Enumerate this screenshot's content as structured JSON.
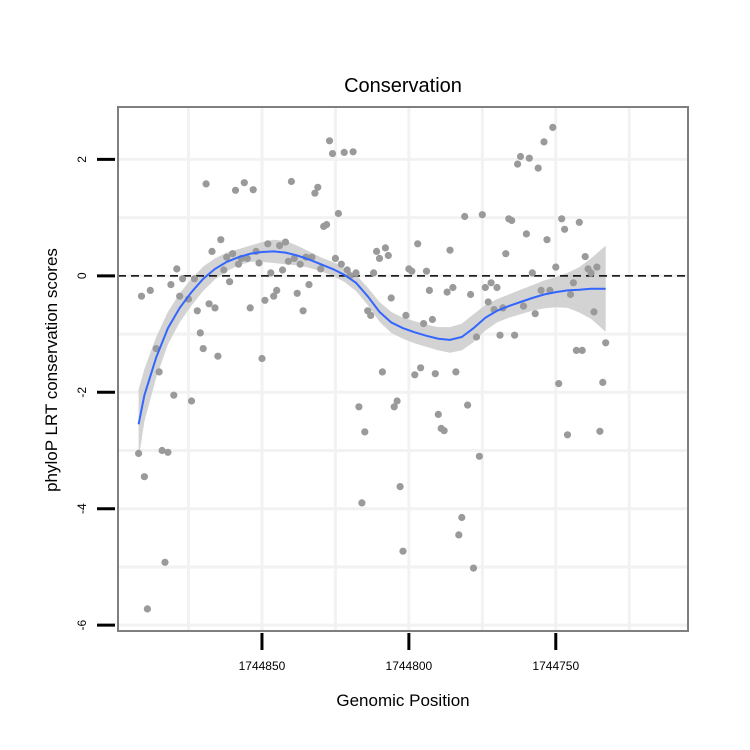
{
  "chart_data": {
    "type": "scatter",
    "title": "Conservation",
    "xlabel": "Genomic Position",
    "ylabel": "phyloP LRT conservation scores",
    "x_reversed": true,
    "xlim": [
      1744899,
      1744705
    ],
    "ylim": [
      -6.1,
      2.9
    ],
    "x_ticks": [
      1744850,
      1744800,
      1744750
    ],
    "y_ticks": [
      2,
      0,
      -2,
      -4,
      -6
    ],
    "grid": true,
    "reference_line": {
      "y": 0,
      "style": "dashed"
    },
    "points": [
      [
        1744892,
        -3.05
      ],
      [
        1744891,
        -0.35
      ],
      [
        1744890,
        -3.45
      ],
      [
        1744889,
        -5.72
      ],
      [
        1744888,
        -0.25
      ],
      [
        1744886,
        -1.25
      ],
      [
        1744885,
        -1.65
      ],
      [
        1744884,
        -3.0
      ],
      [
        1744883,
        -4.92
      ],
      [
        1744882,
        -3.03
      ],
      [
        1744881,
        -0.15
      ],
      [
        1744880,
        -2.05
      ],
      [
        1744879,
        0.12
      ],
      [
        1744878,
        -0.35
      ],
      [
        1744877,
        -0.05
      ],
      [
        1744875,
        -0.4
      ],
      [
        1744874,
        -2.15
      ],
      [
        1744873,
        -0.05
      ],
      [
        1744872,
        -0.6
      ],
      [
        1744871,
        -0.98
      ],
      [
        1744870,
        -1.25
      ],
      [
        1744869,
        1.58
      ],
      [
        1744868,
        -0.48
      ],
      [
        1744867,
        0.42
      ],
      [
        1744866,
        -0.55
      ],
      [
        1744865,
        -1.38
      ],
      [
        1744864,
        0.62
      ],
      [
        1744863,
        0.1
      ],
      [
        1744862,
        0.32
      ],
      [
        1744861,
        -0.1
      ],
      [
        1744860,
        0.38
      ],
      [
        1744859,
        1.47
      ],
      [
        1744858,
        0.2
      ],
      [
        1744857,
        0.3
      ],
      [
        1744856,
        1.6
      ],
      [
        1744855,
        0.3
      ],
      [
        1744854,
        -0.55
      ],
      [
        1744853,
        1.48
      ],
      [
        1744852,
        0.42
      ],
      [
        1744851,
        0.22
      ],
      [
        1744850,
        -1.42
      ],
      [
        1744849,
        -0.42
      ],
      [
        1744848,
        0.55
      ],
      [
        1744847,
        0.05
      ],
      [
        1744846,
        -0.35
      ],
      [
        1744845,
        -0.25
      ],
      [
        1744844,
        0.52
      ],
      [
        1744843,
        0.1
      ],
      [
        1744842,
        0.58
      ],
      [
        1744841,
        0.25
      ],
      [
        1744840,
        1.62
      ],
      [
        1744839,
        0.3
      ],
      [
        1744838,
        -0.3
      ],
      [
        1744837,
        0.2
      ],
      [
        1744836,
        -0.6
      ],
      [
        1744835,
        0.32
      ],
      [
        1744834,
        -0.15
      ],
      [
        1744833,
        0.32
      ],
      [
        1744832,
        1.42
      ],
      [
        1744831,
        1.52
      ],
      [
        1744830,
        0.12
      ],
      [
        1744829,
        0.85
      ],
      [
        1744828,
        0.88
      ],
      [
        1744827,
        2.32
      ],
      [
        1744826,
        2.1
      ],
      [
        1744825,
        0.3
      ],
      [
        1744824,
        1.07
      ],
      [
        1744823,
        0.2
      ],
      [
        1744822,
        2.12
      ],
      [
        1744821,
        0.1
      ],
      [
        1744820,
        0.0
      ],
      [
        1744819,
        2.13
      ],
      [
        1744818,
        0.05
      ],
      [
        1744817,
        -2.25
      ],
      [
        1744816,
        -3.9
      ],
      [
        1744815,
        -2.68
      ],
      [
        1744814,
        -0.6
      ],
      [
        1744813,
        -0.68
      ],
      [
        1744812,
        0.05
      ],
      [
        1744811,
        0.42
      ],
      [
        1744810,
        0.3
      ],
      [
        1744809,
        -1.65
      ],
      [
        1744808,
        0.48
      ],
      [
        1744807,
        0.35
      ],
      [
        1744806,
        -0.38
      ],
      [
        1744805,
        -2.25
      ],
      [
        1744804,
        -2.15
      ],
      [
        1744803,
        -3.62
      ],
      [
        1744802,
        -4.73
      ],
      [
        1744801,
        -0.68
      ],
      [
        1744800,
        0.12
      ],
      [
        1744799,
        0.08
      ],
      [
        1744798,
        -1.7
      ],
      [
        1744797,
        0.55
      ],
      [
        1744796,
        -1.58
      ],
      [
        1744795,
        -0.82
      ],
      [
        1744794,
        0.08
      ],
      [
        1744793,
        -0.25
      ],
      [
        1744792,
        -0.75
      ],
      [
        1744791,
        -1.68
      ],
      [
        1744790,
        -2.38
      ],
      [
        1744789,
        -2.62
      ],
      [
        1744788,
        -2.66
      ],
      [
        1744787,
        -0.28
      ],
      [
        1744786,
        0.44
      ],
      [
        1744785,
        -0.2
      ],
      [
        1744784,
        -1.65
      ],
      [
        1744783,
        -4.45
      ],
      [
        1744782,
        -4.15
      ],
      [
        1744781,
        1.02
      ],
      [
        1744780,
        -2.22
      ],
      [
        1744779,
        -0.32
      ],
      [
        1744778,
        -5.02
      ],
      [
        1744777,
        -1.05
      ],
      [
        1744776,
        -3.1
      ],
      [
        1744775,
        1.05
      ],
      [
        1744774,
        -0.2
      ],
      [
        1744773,
        -0.45
      ],
      [
        1744772,
        -0.12
      ],
      [
        1744771,
        -0.58
      ],
      [
        1744770,
        -0.2
      ],
      [
        1744769,
        -1.02
      ],
      [
        1744768,
        -0.55
      ],
      [
        1744767,
        0.38
      ],
      [
        1744766,
        0.98
      ],
      [
        1744765,
        0.95
      ],
      [
        1744764,
        -1.02
      ],
      [
        1744763,
        1.92
      ],
      [
        1744762,
        2.05
      ],
      [
        1744761,
        -0.52
      ],
      [
        1744760,
        0.72
      ],
      [
        1744759,
        2.02
      ],
      [
        1744758,
        0.05
      ],
      [
        1744757,
        -0.65
      ],
      [
        1744756,
        1.85
      ],
      [
        1744755,
        -0.25
      ],
      [
        1744754,
        2.3
      ],
      [
        1744753,
        0.62
      ],
      [
        1744752,
        -0.25
      ],
      [
        1744751,
        2.55
      ],
      [
        1744750,
        0.15
      ],
      [
        1744749,
        -1.85
      ],
      [
        1744748,
        0.98
      ],
      [
        1744747,
        0.8
      ],
      [
        1744746,
        -2.73
      ],
      [
        1744745,
        -0.32
      ],
      [
        1744744,
        -0.12
      ],
      [
        1744743,
        -1.28
      ],
      [
        1744742,
        0.92
      ],
      [
        1744741,
        -1.28
      ],
      [
        1744740,
        0.33
      ],
      [
        1744739,
        0.12
      ],
      [
        1744738,
        0.05
      ],
      [
        1744737,
        -0.62
      ],
      [
        1744736,
        0.15
      ],
      [
        1744735,
        -2.67
      ],
      [
        1744734,
        -1.83
      ],
      [
        1744733,
        -1.15
      ]
    ],
    "smooth_line": {
      "color": "#3366ff",
      "x": [
        1744892,
        1744890,
        1744886,
        1744882,
        1744878,
        1744874,
        1744870,
        1744866,
        1744862,
        1744858,
        1744854,
        1744850,
        1744846,
        1744842,
        1744838,
        1744834,
        1744830,
        1744826,
        1744822,
        1744818,
        1744814,
        1744810,
        1744806,
        1744802,
        1744798,
        1744794,
        1744790,
        1744786,
        1744782,
        1744778,
        1744774,
        1744770,
        1744766,
        1744762,
        1744758,
        1744754,
        1744750,
        1744746,
        1744742,
        1744738,
        1744733
      ],
      "y": [
        -2.55,
        -2.05,
        -1.4,
        -0.9,
        -0.55,
        -0.28,
        -0.05,
        0.12,
        0.24,
        0.32,
        0.38,
        0.41,
        0.42,
        0.4,
        0.35,
        0.28,
        0.2,
        0.12,
        0.02,
        -0.12,
        -0.35,
        -0.62,
        -0.8,
        -0.9,
        -0.97,
        -1.03,
        -1.08,
        -1.1,
        -1.05,
        -0.9,
        -0.72,
        -0.6,
        -0.52,
        -0.45,
        -0.38,
        -0.32,
        -0.28,
        -0.25,
        -0.24,
        -0.22,
        -0.22
      ]
    },
    "confidence_band": {
      "color": "#c8c8c8",
      "upper": [
        -1.95,
        -1.6,
        -1.05,
        -0.62,
        -0.3,
        -0.05,
        0.16,
        0.3,
        0.4,
        0.46,
        0.52,
        0.58,
        0.62,
        0.6,
        0.52,
        0.42,
        0.32,
        0.24,
        0.14,
        0.02,
        -0.2,
        -0.45,
        -0.62,
        -0.72,
        -0.78,
        -0.84,
        -0.88,
        -0.88,
        -0.82,
        -0.66,
        -0.5,
        -0.4,
        -0.32,
        -0.24,
        -0.16,
        -0.08,
        -0.02,
        0.05,
        0.15,
        0.3,
        0.52
      ],
      "lower": [
        -3.15,
        -2.5,
        -1.75,
        -1.18,
        -0.8,
        -0.51,
        -0.26,
        -0.06,
        0.08,
        0.18,
        0.24,
        0.24,
        0.22,
        0.2,
        0.18,
        0.14,
        0.08,
        0.0,
        -0.1,
        -0.26,
        -0.5,
        -0.79,
        -0.98,
        -1.08,
        -1.16,
        -1.22,
        -1.28,
        -1.32,
        -1.28,
        -1.14,
        -0.94,
        -0.8,
        -0.72,
        -0.66,
        -0.6,
        -0.56,
        -0.54,
        -0.55,
        -0.63,
        -0.74,
        -0.96
      ]
    }
  }
}
